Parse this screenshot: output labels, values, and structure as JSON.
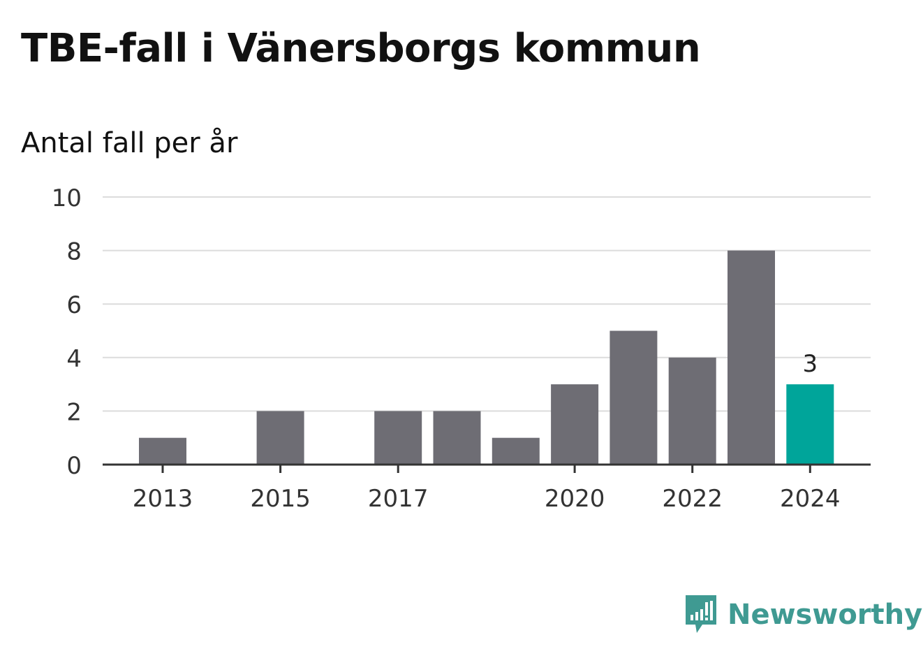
{
  "title": "TBE-fall i Vänersborgs kommun",
  "subtitle": "Antal fall per år",
  "brand": "Newsworthy",
  "colors": {
    "bar": "#6e6d74",
    "highlight": "#00a59a",
    "grid": "#dcdcdc",
    "axis": "#333333",
    "brand": "#3f9a92"
  },
  "chart_data": {
    "type": "bar",
    "title": "TBE-fall i Vänersborgs kommun",
    "subtitle": "Antal fall per år",
    "categories": [
      "2013",
      "2014",
      "2015",
      "2016",
      "2017",
      "2018",
      "2019",
      "2020",
      "2021",
      "2022",
      "2023",
      "2024"
    ],
    "values": [
      1,
      0,
      2,
      0,
      2,
      2,
      1,
      3,
      5,
      4,
      8,
      3
    ],
    "x_tick_labels": [
      "2013",
      "2015",
      "2017",
      "2020",
      "2022",
      "2024"
    ],
    "y_ticks": [
      0,
      2,
      4,
      6,
      8,
      10
    ],
    "ylim": [
      0,
      10
    ],
    "grid": true,
    "highlight": {
      "category": "2024",
      "label": "3"
    }
  }
}
